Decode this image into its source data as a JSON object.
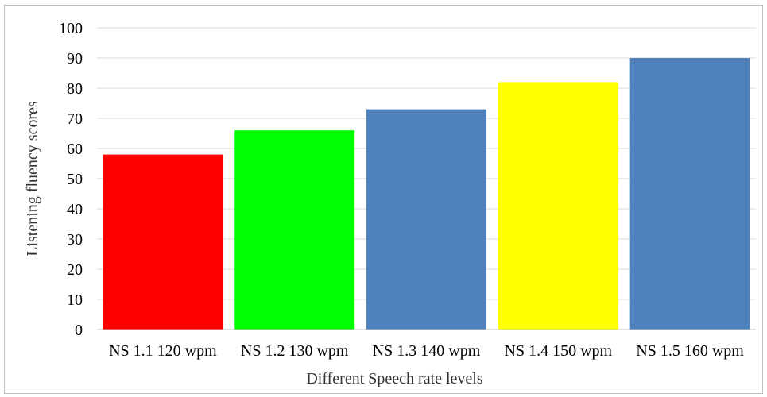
{
  "chart_data": {
    "type": "bar",
    "title": "",
    "xlabel": "Different Speech rate levels",
    "ylabel": "Listening fluency scores",
    "ylim": [
      0,
      100
    ],
    "yticks": [
      0,
      10,
      20,
      30,
      40,
      50,
      60,
      70,
      80,
      90,
      100
    ],
    "grid": true,
    "legend": "none",
    "categories": [
      "NS 1.1 120 wpm",
      "NS 1.2 130 wpm",
      "NS 1.3 140 wpm",
      "NS 1.4 150 wpm",
      "NS 1.5 160 wpm"
    ],
    "values": [
      58,
      66,
      73,
      82,
      90
    ],
    "bar_colors": [
      "#ff0000",
      "#00ff00",
      "#4f81bd",
      "#ffff00",
      "#4f81bd"
    ]
  }
}
